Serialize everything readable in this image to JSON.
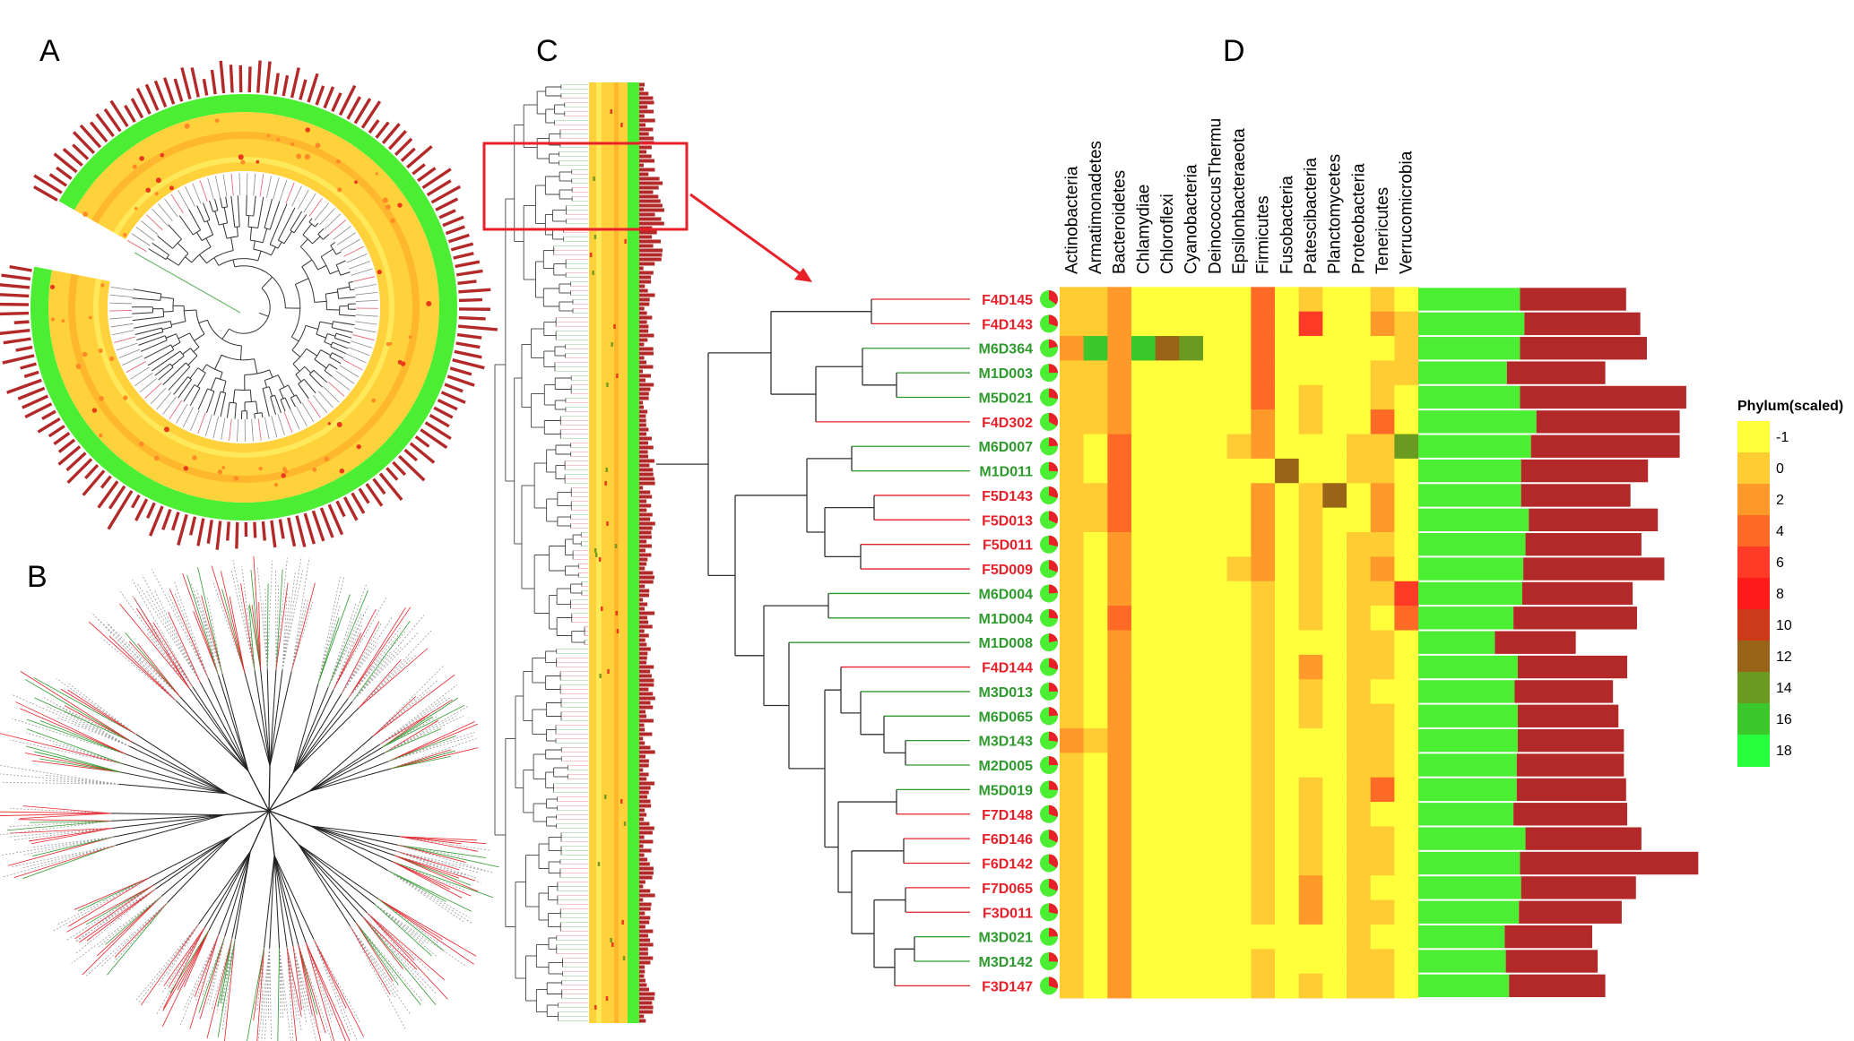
{
  "panels": {
    "a": "A",
    "b": "B",
    "c": "C",
    "d": "D"
  },
  "colors": {
    "female": "#e8202a",
    "male": "#2e9a2e",
    "bar_green": "#4cee34",
    "bar_red": "#b32828",
    "branch": "#333333",
    "highlight_box": "#e8202a"
  },
  "phyla": [
    "Actinobacteria",
    "Armatimonadetes",
    "Bacteroidetes",
    "Chlamydiae",
    "Chloroflexi",
    "Cyanobacteria",
    "DeinococcusThermu",
    "Epsilonbacteraeota",
    "Firmicutes",
    "Fusobacteria",
    "Patescibacteria",
    "Planctomycetes",
    "Proteobacteria",
    "Tenericutes",
    "Verrucomicrobia"
  ],
  "samples": [
    {
      "label": "F4D145",
      "sex": "F"
    },
    {
      "label": "F4D143",
      "sex": "F"
    },
    {
      "label": "M6D364",
      "sex": "M"
    },
    {
      "label": "M1D003",
      "sex": "M"
    },
    {
      "label": "M5D021",
      "sex": "M"
    },
    {
      "label": "F4D302",
      "sex": "F"
    },
    {
      "label": "M6D007",
      "sex": "M"
    },
    {
      "label": "M1D011",
      "sex": "M"
    },
    {
      "label": "F5D143",
      "sex": "F"
    },
    {
      "label": "F5D013",
      "sex": "F"
    },
    {
      "label": "F5D011",
      "sex": "F"
    },
    {
      "label": "F5D009",
      "sex": "F"
    },
    {
      "label": "M6D004",
      "sex": "M"
    },
    {
      "label": "M1D004",
      "sex": "M"
    },
    {
      "label": "M1D008",
      "sex": "M"
    },
    {
      "label": "F4D144",
      "sex": "F"
    },
    {
      "label": "M3D013",
      "sex": "M"
    },
    {
      "label": "M6D065",
      "sex": "M"
    },
    {
      "label": "M3D143",
      "sex": "M"
    },
    {
      "label": "M2D005",
      "sex": "M"
    },
    {
      "label": "M5D019",
      "sex": "M"
    },
    {
      "label": "F7D148",
      "sex": "F"
    },
    {
      "label": "F6D146",
      "sex": "F"
    },
    {
      "label": "F6D142",
      "sex": "F"
    },
    {
      "label": "F7D065",
      "sex": "F"
    },
    {
      "label": "F3D011",
      "sex": "F"
    },
    {
      "label": "M3D021",
      "sex": "M"
    },
    {
      "label": "M3D142",
      "sex": "M"
    },
    {
      "label": "F3D147",
      "sex": "F"
    }
  ],
  "heatmap_values": [
    [
      0,
      1,
      3,
      -1,
      -1,
      -1,
      -1,
      -1,
      4,
      -1,
      1,
      -1,
      -1,
      1,
      -1
    ],
    [
      1,
      0,
      3,
      -1,
      -1,
      -1,
      -1,
      -1,
      4,
      -1,
      7,
      -1,
      -1,
      3,
      0
    ],
    [
      2,
      16,
      3,
      16,
      12,
      15,
      -1,
      -1,
      5,
      -1,
      -1,
      -1,
      -1,
      -1,
      0
    ],
    [
      0,
      0,
      3,
      -1,
      -1,
      -1,
      -1,
      -1,
      4,
      -1,
      -1,
      -1,
      -1,
      0,
      1
    ],
    [
      0,
      0,
      3,
      -1,
      -1,
      -1,
      -1,
      -1,
      5,
      -1,
      0,
      -1,
      -1,
      1,
      -1
    ],
    [
      0,
      0,
      2,
      -1,
      -1,
      -1,
      -1,
      -1,
      3,
      -1,
      1,
      -1,
      -1,
      4,
      -1
    ],
    [
      0,
      -1,
      4,
      -1,
      -1,
      -1,
      -1,
      0,
      2,
      -1,
      -1,
      -1,
      1,
      1,
      14
    ],
    [
      0,
      -1,
      4,
      -1,
      -1,
      -1,
      -1,
      -1,
      -1,
      12,
      -1,
      -1,
      1,
      1,
      -1
    ],
    [
      1,
      0,
      4,
      -1,
      -1,
      -1,
      -1,
      -1,
      2,
      -1,
      1,
      12,
      -1,
      2,
      -1
    ],
    [
      0,
      0,
      5,
      -1,
      -1,
      -1,
      -1,
      -1,
      2,
      -1,
      0,
      -1,
      -1,
      2,
      -1
    ],
    [
      0,
      -1,
      3,
      -1,
      -1,
      -1,
      -1,
      -1,
      2,
      -1,
      0,
      -1,
      0,
      1,
      -1
    ],
    [
      0,
      -1,
      3,
      -1,
      -1,
      -1,
      -1,
      0,
      3,
      -1,
      0,
      -1,
      1,
      2,
      -1
    ],
    [
      0,
      -1,
      3,
      -1,
      -1,
      -1,
      -1,
      -1,
      0,
      -1,
      0,
      -1,
      0,
      0,
      6
    ],
    [
      0,
      -1,
      4,
      -1,
      -1,
      -1,
      -1,
      -1,
      0,
      -1,
      0,
      -1,
      0,
      -1,
      5
    ],
    [
      0,
      -1,
      3,
      -1,
      -1,
      -1,
      -1,
      -1,
      0,
      -1,
      -1,
      -1,
      0,
      0,
      -1
    ],
    [
      0,
      -1,
      3,
      -1,
      -1,
      -1,
      -1,
      -1,
      1,
      -1,
      3,
      -1,
      0,
      0,
      -1
    ],
    [
      0,
      -1,
      2,
      -1,
      -1,
      -1,
      -1,
      -1,
      0,
      -1,
      0,
      -1,
      0,
      -1,
      -1
    ],
    [
      1,
      -1,
      2,
      -1,
      -1,
      -1,
      -1,
      -1,
      0,
      -1,
      1,
      -1,
      0,
      0,
      -1
    ],
    [
      3,
      0,
      2,
      -1,
      -1,
      -1,
      -1,
      -1,
      0,
      -1,
      -1,
      -1,
      0,
      0,
      -1
    ],
    [
      0,
      -1,
      2,
      -1,
      -1,
      -1,
      -1,
      -1,
      0,
      -1,
      -1,
      -1,
      0,
      0,
      -1
    ],
    [
      0,
      -1,
      2,
      -1,
      -1,
      -1,
      -1,
      -1,
      0,
      -1,
      0,
      -1,
      0,
      4,
      -1
    ],
    [
      0,
      -1,
      2,
      -1,
      -1,
      -1,
      -1,
      -1,
      0,
      -1,
      0,
      -1,
      0,
      -1,
      -1
    ],
    [
      0,
      -1,
      2,
      -1,
      -1,
      -1,
      -1,
      -1,
      0,
      -1,
      1,
      -1,
      0,
      0,
      -1
    ],
    [
      0,
      -1,
      2,
      -1,
      -1,
      -1,
      -1,
      -1,
      0,
      -1,
      0,
      -1,
      0,
      0,
      -1
    ],
    [
      0,
      -1,
      2,
      -1,
      -1,
      -1,
      -1,
      -1,
      0,
      -1,
      3,
      -1,
      0,
      -1,
      -1
    ],
    [
      0,
      -1,
      2,
      -1,
      -1,
      -1,
      -1,
      -1,
      0,
      -1,
      3,
      -1,
      0,
      1,
      -1
    ],
    [
      0,
      -1,
      2,
      -1,
      -1,
      -1,
      -1,
      -1,
      -1,
      -1,
      -1,
      -1,
      0,
      -1,
      -1
    ],
    [
      1,
      -1,
      2,
      -1,
      -1,
      -1,
      -1,
      -1,
      0,
      -1,
      -1,
      -1,
      0,
      0,
      -1
    ],
    [
      0,
      -1,
      2,
      -1,
      -1,
      -1,
      -1,
      -1,
      0,
      -1,
      1,
      -1,
      0,
      1,
      -1
    ]
  ],
  "bar_values": [
    {
      "green": 0.93,
      "red": 0.97
    },
    {
      "green": 0.97,
      "red": 1.06
    },
    {
      "green": 0.93,
      "red": 1.16
    },
    {
      "green": 0.81,
      "red": 0.9
    },
    {
      "green": 0.93,
      "red": 1.52
    },
    {
      "green": 1.08,
      "red": 1.31
    },
    {
      "green": 1.03,
      "red": 1.36
    },
    {
      "green": 0.94,
      "red": 1.16
    },
    {
      "green": 0.94,
      "red": 1.0
    },
    {
      "green": 1.01,
      "red": 1.18
    },
    {
      "green": 0.98,
      "red": 1.06
    },
    {
      "green": 0.96,
      "red": 1.29
    },
    {
      "green": 0.95,
      "red": 1.01
    },
    {
      "green": 0.87,
      "red": 1.13
    },
    {
      "green": 0.7,
      "red": 0.74
    },
    {
      "green": 0.91,
      "red": 1.0
    },
    {
      "green": 0.88,
      "red": 0.9
    },
    {
      "green": 0.91,
      "red": 0.92
    },
    {
      "green": 0.91,
      "red": 0.97
    },
    {
      "green": 0.9,
      "red": 0.98
    },
    {
      "green": 0.9,
      "red": 1.0
    },
    {
      "green": 0.87,
      "red": 1.04
    },
    {
      "green": 0.98,
      "red": 1.06
    },
    {
      "green": 0.93,
      "red": 1.63
    },
    {
      "green": 0.94,
      "red": 1.05
    },
    {
      "green": 0.92,
      "red": 0.94
    },
    {
      "green": 0.79,
      "red": 0.8
    },
    {
      "green": 0.8,
      "red": 0.84
    },
    {
      "green": 0.83,
      "red": 0.88
    }
  ],
  "pie_fraction_red": [
    0.35,
    0.3,
    0.22,
    0.25,
    0.28,
    0.33,
    0.24,
    0.26,
    0.3,
    0.32,
    0.29,
    0.31,
    0.24,
    0.26,
    0.22,
    0.3,
    0.25,
    0.24,
    0.27,
    0.25,
    0.26,
    0.3,
    0.32,
    0.34,
    0.31,
    0.28,
    0.24,
    0.26,
    0.3
  ],
  "legend": {
    "title": "Phylum(scaled)",
    "ticks": [
      "-1",
      "0",
      "2",
      "4",
      "6",
      "8",
      "10",
      "12",
      "14",
      "16",
      "18"
    ],
    "colors": [
      "#ffff3c",
      "#ffcc33",
      "#ff9a2a",
      "#ff6a26",
      "#ff3a26",
      "#ff1a1a",
      "#cc3a1a",
      "#9a6418",
      "#6a9a20",
      "#3cc82a",
      "#28ff3c"
    ]
  }
}
